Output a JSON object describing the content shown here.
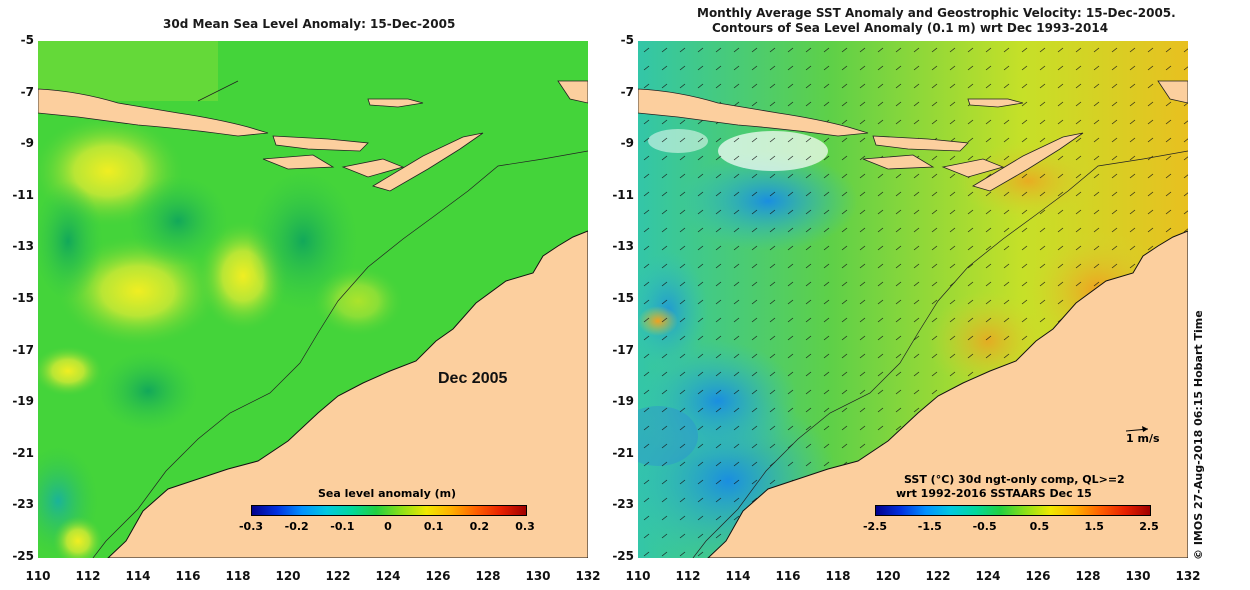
{
  "left_panel": {
    "title": "30d Mean Sea Level Anomaly: 15-Dec-2005",
    "map_label": "Dec 2005",
    "colorbar": {
      "title": "Sea level anomaly (m)",
      "ticks": [
        "-0.3",
        "-0.2",
        "-0.1",
        "0",
        "0.1",
        "0.2",
        "0.3"
      ]
    }
  },
  "right_panel": {
    "title_line1": "Monthly Average SST Anomaly  and Geostrophic Velocity: 15-Dec-2005.",
    "title_line2": "Contours of Sea Level Anomaly (0.1 m) wrt Dec 1993-2014",
    "scale_label": "1 m/s",
    "colorbar": {
      "title_line1": "SST (°C) 30d ngt-only comp, QL>=2",
      "title_line2": "wrt 1992-2016 SSTAARS Dec 15",
      "ticks": [
        "-2.5",
        "-1.5",
        "-0.5",
        "0.5",
        "1.5",
        "2.5"
      ]
    }
  },
  "axes": {
    "y_ticks": [
      "-5",
      "-7",
      "-9",
      "-11",
      "-13",
      "-15",
      "-17",
      "-19",
      "-21",
      "-23",
      "-25"
    ],
    "x_ticks": [
      "110",
      "112",
      "114",
      "116",
      "118",
      "120",
      "122",
      "124",
      "126",
      "128",
      "130",
      "132"
    ]
  },
  "credit": "© IMOS 27-Aug-2018 06:15 Hobart Time",
  "colors": {
    "land": "#fccf9e",
    "ocean_green": "#44d43a",
    "ocean_deep": "#22bb55",
    "text": "#111111"
  }
}
